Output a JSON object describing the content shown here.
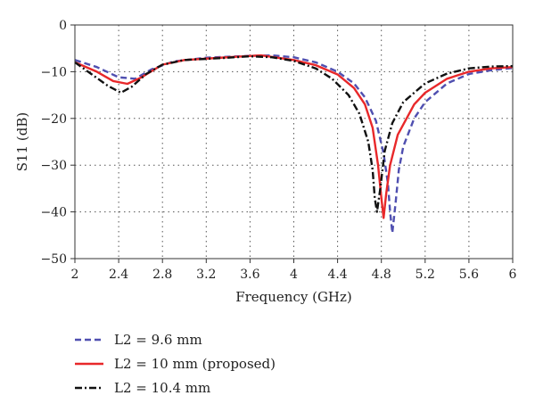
{
  "chart_data": {
    "type": "line",
    "title": "",
    "xlabel": "Frequency (GHz)",
    "ylabel": "S11 (dB)",
    "xlim": [
      2,
      6
    ],
    "ylim": [
      -50,
      0
    ],
    "xticks": [
      2,
      2.4,
      2.8,
      3.2,
      3.6,
      4,
      4.4,
      4.8,
      5.2,
      5.6,
      6
    ],
    "xtick_labels": [
      "2",
      "2.4",
      "2.8",
      "3.2",
      "3.6",
      "4",
      "4.4",
      "4.8",
      "5.2",
      "5.6",
      "6"
    ],
    "yticks": [
      0,
      -10,
      -20,
      -30,
      -40,
      -50
    ],
    "ytick_labels": [
      "0",
      "−10",
      "−20",
      "−30",
      "−40",
      "−50"
    ],
    "grid": true,
    "legend_position": "below",
    "series": [
      {
        "name": "L2 = 9.6 mm",
        "color": "#4f4fb0",
        "style": "dashed",
        "points": [
          [
            2.0,
            -7.5
          ],
          [
            2.2,
            -9
          ],
          [
            2.4,
            -11.2
          ],
          [
            2.55,
            -11.5
          ],
          [
            2.7,
            -9.5
          ],
          [
            2.9,
            -7.8
          ],
          [
            3.2,
            -7.0
          ],
          [
            3.6,
            -6.6
          ],
          [
            3.8,
            -6.5
          ],
          [
            4.0,
            -6.9
          ],
          [
            4.2,
            -8.0
          ],
          [
            4.4,
            -10.0
          ],
          [
            4.55,
            -12.5
          ],
          [
            4.65,
            -15.5
          ],
          [
            4.75,
            -20.5
          ],
          [
            4.82,
            -27.5
          ],
          [
            4.86,
            -34
          ],
          [
            4.88,
            -40
          ],
          [
            4.9,
            -44.5
          ],
          [
            4.93,
            -38
          ],
          [
            4.96,
            -31
          ],
          [
            5.0,
            -26
          ],
          [
            5.1,
            -20
          ],
          [
            5.2,
            -16.5
          ],
          [
            5.4,
            -12.5
          ],
          [
            5.6,
            -10.5
          ],
          [
            5.8,
            -9.7
          ],
          [
            6.0,
            -9.2
          ]
        ]
      },
      {
        "name": "L2 = 10 mm (proposed)",
        "color": "#e8282a",
        "style": "solid",
        "points": [
          [
            2.0,
            -8.0
          ],
          [
            2.2,
            -10
          ],
          [
            2.35,
            -12.0
          ],
          [
            2.48,
            -12.6
          ],
          [
            2.6,
            -11.3
          ],
          [
            2.8,
            -8.5
          ],
          [
            3.0,
            -7.5
          ],
          [
            3.4,
            -6.9
          ],
          [
            3.7,
            -6.5
          ],
          [
            4.0,
            -7.5
          ],
          [
            4.2,
            -8.6
          ],
          [
            4.4,
            -10.6
          ],
          [
            4.55,
            -13.5
          ],
          [
            4.65,
            -17
          ],
          [
            4.72,
            -22
          ],
          [
            4.77,
            -30
          ],
          [
            4.8,
            -37
          ],
          [
            4.82,
            -41.3
          ],
          [
            4.845,
            -36
          ],
          [
            4.88,
            -30
          ],
          [
            4.95,
            -23.5
          ],
          [
            5.1,
            -17
          ],
          [
            5.2,
            -14.5
          ],
          [
            5.4,
            -11.5
          ],
          [
            5.6,
            -10.0
          ],
          [
            5.8,
            -9.3
          ],
          [
            6.0,
            -9.0
          ]
        ]
      },
      {
        "name": "L2 = 10.4 mm",
        "color": "#111111",
        "style": "dashdot",
        "points": [
          [
            2.0,
            -8.0
          ],
          [
            2.15,
            -10.5
          ],
          [
            2.3,
            -13
          ],
          [
            2.42,
            -14.5
          ],
          [
            2.52,
            -13.2
          ],
          [
            2.65,
            -10.5
          ],
          [
            2.8,
            -8.5
          ],
          [
            3.0,
            -7.5
          ],
          [
            3.4,
            -7.0
          ],
          [
            3.6,
            -6.7
          ],
          [
            3.8,
            -6.9
          ],
          [
            4.0,
            -7.7
          ],
          [
            4.2,
            -9.3
          ],
          [
            4.35,
            -11.5
          ],
          [
            4.5,
            -15
          ],
          [
            4.6,
            -19
          ],
          [
            4.68,
            -25
          ],
          [
            4.72,
            -31
          ],
          [
            4.74,
            -37
          ],
          [
            4.76,
            -40
          ],
          [
            4.79,
            -35
          ],
          [
            4.83,
            -27
          ],
          [
            4.9,
            -21
          ],
          [
            5.0,
            -16.5
          ],
          [
            5.2,
            -12.5
          ],
          [
            5.4,
            -10.4
          ],
          [
            5.6,
            -9.3
          ],
          [
            5.8,
            -8.9
          ],
          [
            6.0,
            -8.8
          ]
        ]
      }
    ]
  }
}
